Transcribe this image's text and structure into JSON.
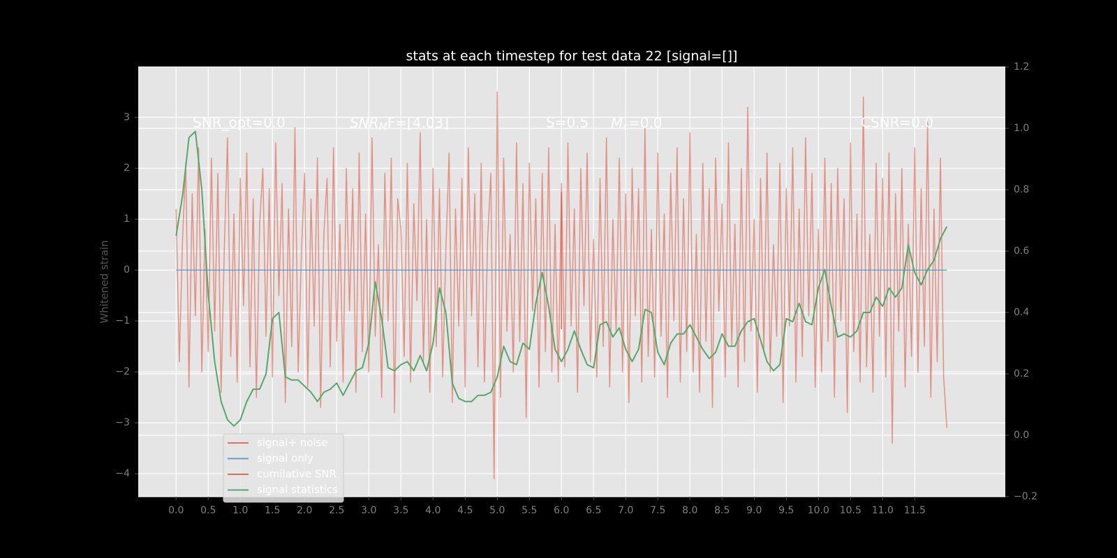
{
  "chart_data": {
    "type": "line",
    "title": "stats at each timestep for test data 22 [signal=[]]",
    "ylabel": "Whitened strain",
    "xlim": [
      -0.59,
      12.91
    ],
    "ylim": [
      -4.45,
      3.99
    ],
    "y2lim": [
      -0.2,
      1.2
    ],
    "xticks": [
      {
        "value": 0,
        "label": "0.0"
      },
      0.5,
      {
        "value": 1,
        "label": "1.0"
      },
      1.5,
      {
        "value": 2,
        "label": "2.0"
      },
      2.5,
      {
        "value": 3,
        "label": "3.0"
      },
      3.5,
      {
        "value": 4,
        "label": "4.0"
      },
      4.5,
      {
        "value": 5,
        "label": "5.0"
      },
      5.5,
      {
        "value": 6,
        "label": "6.0"
      },
      6.5,
      {
        "value": 7,
        "label": "7.0"
      },
      7.5,
      {
        "value": 8,
        "label": "8.0"
      },
      8.5,
      {
        "value": 9,
        "label": "9.0"
      },
      9.5,
      {
        "value": 10,
        "label": "10.0"
      },
      10.5,
      {
        "value": 11,
        "label": "11.0"
      },
      11.5
    ],
    "yticks": [
      {
        "value": -4,
        "label": "−4"
      },
      {
        "value": -3,
        "label": "−3"
      },
      {
        "value": -2,
        "label": "−2"
      },
      {
        "value": -1,
        "label": "−1"
      },
      0,
      1,
      2,
      3
    ],
    "y2ticks": [
      {
        "value": -0.2,
        "label": "−0.2"
      },
      {
        "value": 0,
        "label": "0.0"
      },
      0.2,
      0.4,
      0.6,
      0.8,
      {
        "value": 1,
        "label": "1.0"
      },
      1.2
    ],
    "grid": true,
    "legend": "lower left",
    "annotations": [
      {
        "text": "SNR_opt=0.0"
      },
      {
        "base": "SNR",
        "sub": "M",
        "rest": "F=[4.03]"
      },
      {
        "text": "S=0.5"
      },
      {
        "base": "M",
        "sub": "c",
        "rest": "=0.0"
      },
      {
        "text": "CSNR=0.0"
      }
    ],
    "series": [
      {
        "name": "signal+ noise",
        "color": "#e24a33",
        "alpha": 0.55,
        "axis": "y",
        "x": [
          0,
          0.05,
          0.1,
          0.15,
          0.2,
          0.25,
          0.3,
          0.35,
          0.4,
          0.45,
          0.5,
          0.55,
          0.6,
          0.65,
          0.7,
          0.75,
          0.8,
          0.85,
          0.9,
          0.95,
          1,
          1.05,
          1.1,
          1.15,
          1.2,
          1.25,
          1.3,
          1.35,
          1.4,
          1.45,
          1.5,
          1.55,
          1.6,
          1.65,
          1.7,
          1.75,
          1.8,
          1.85,
          1.9,
          1.95,
          2,
          2.05,
          2.1,
          2.15,
          2.2,
          2.25,
          2.3,
          2.35,
          2.4,
          2.45,
          2.5,
          2.55,
          2.6,
          2.65,
          2.7,
          2.75,
          2.8,
          2.85,
          2.9,
          2.95,
          3,
          3.05,
          3.1,
          3.15,
          3.2,
          3.25,
          3.3,
          3.35,
          3.4,
          3.45,
          3.5,
          3.55,
          3.6,
          3.65,
          3.7,
          3.75,
          3.8,
          3.85,
          3.9,
          3.95,
          4,
          4.05,
          4.1,
          4.15,
          4.2,
          4.25,
          4.3,
          4.35,
          4.4,
          4.45,
          4.5,
          4.55,
          4.6,
          4.65,
          4.7,
          4.75,
          4.8,
          4.85,
          4.9,
          4.95,
          5,
          5.05,
          5.1,
          5.15,
          5.2,
          5.25,
          5.3,
          5.35,
          5.4,
          5.45,
          5.5,
          5.55,
          5.6,
          5.65,
          5.7,
          5.75,
          5.8,
          5.85,
          5.9,
          5.95,
          6,
          6.05,
          6.1,
          6.15,
          6.2,
          6.25,
          6.3,
          6.35,
          6.4,
          6.45,
          6.5,
          6.55,
          6.6,
          6.65,
          6.7,
          6.75,
          6.8,
          6.85,
          6.9,
          6.95,
          7,
          7.05,
          7.1,
          7.15,
          7.2,
          7.25,
          7.3,
          7.35,
          7.4,
          7.45,
          7.5,
          7.55,
          7.6,
          7.65,
          7.7,
          7.75,
          7.8,
          7.85,
          7.9,
          7.95,
          8,
          8.05,
          8.1,
          8.15,
          8.2,
          8.25,
          8.3,
          8.35,
          8.4,
          8.45,
          8.5,
          8.55,
          8.6,
          8.65,
          8.7,
          8.75,
          8.8,
          8.85,
          8.9,
          8.95,
          9,
          9.05,
          9.1,
          9.15,
          9.2,
          9.25,
          9.3,
          9.35,
          9.4,
          9.45,
          9.5,
          9.55,
          9.6,
          9.65,
          9.7,
          9.75,
          9.8,
          9.85,
          9.9,
          9.95,
          10,
          10.05,
          10.1,
          10.15,
          10.2,
          10.25,
          10.3,
          10.35,
          10.4,
          10.45,
          10.5,
          10.55,
          10.6,
          10.65,
          10.7,
          10.75,
          10.8,
          10.85,
          10.9,
          10.95,
          11,
          11.05,
          11.1,
          11.15,
          11.2,
          11.25,
          11.3,
          11.35,
          11.4,
          11.45,
          11.5,
          11.55,
          11.6,
          11.65,
          11.7,
          11.75,
          11.8,
          11.85,
          11.9,
          11.95,
          12
        ],
        "values": [
          1.2,
          -1.8,
          0.6,
          2.1,
          -2.3,
          1.5,
          -0.9,
          2.4,
          -2.0,
          0.8,
          -1.6,
          2.2,
          -1.2,
          1.9,
          -2.4,
          0.4,
          2.6,
          -1.7,
          1.1,
          -2.2,
          1.8,
          -0.7,
          2.3,
          -1.9,
          1.4,
          -2.5,
          0.9,
          2.0,
          -1.3,
          1.6,
          -2.1,
          2.5,
          -0.5,
          1.7,
          -2.6,
          1.2,
          -1.5,
          2.8,
          -2.0,
          0.3,
          1.9,
          -2.3,
          1.4,
          -1.1,
          2.2,
          -2.7,
          0.7,
          1.8,
          -1.9,
          2.4,
          -1.4,
          0.9,
          -2.2,
          2.0,
          -0.8,
          1.6,
          -2.4,
          2.3,
          -1.6,
          1.1,
          -2.0,
          2.6,
          -1.3,
          0.5,
          -2.5,
          1.9,
          -1.0,
          2.2,
          -2.8,
          1.4,
          0.8,
          -1.7,
          2.1,
          -2.2,
          1.3,
          -0.6,
          2.7,
          -1.8,
          1.0,
          -2.4,
          2.0,
          -1.5,
          1.6,
          -2.1,
          0.4,
          2.3,
          -2.6,
          1.2,
          -1.1,
          1.8,
          -2.3,
          2.4,
          -0.9,
          1.5,
          -1.9,
          2.1,
          -2.2,
          0.6,
          1.9,
          -4.1,
          3.5,
          -2.5,
          2.2,
          -1.2,
          0.7,
          -2.0,
          2.5,
          -1.4,
          1.7,
          -2.9,
          2.1,
          -0.8,
          1.4,
          -2.3,
          1.9,
          -1.6,
          2.4,
          -2.0,
          0.9,
          -2.2,
          1.7,
          -1.9,
          2.5,
          -1.1,
          1.2,
          -2.4,
          2.0,
          -0.7,
          2.3,
          -1.8,
          0.6,
          -2.1,
          1.8,
          -1.5,
          2.6,
          -2.3,
          1.0,
          -1.2,
          2.2,
          -2.0,
          1.5,
          -2.6,
          2.0,
          -0.9,
          1.6,
          -2.2,
          2.8,
          -1.7,
          0.8,
          -2.1,
          2.3,
          -1.3,
          1.1,
          -2.5,
          1.9,
          -1.0,
          2.4,
          -2.2,
          1.4,
          -1.6,
          2.7,
          -2.0,
          0.7,
          -2.4,
          2.1,
          -1.4,
          1.6,
          -2.7,
          2.2,
          -0.8,
          1.3,
          -2.1,
          2.5,
          -1.5,
          0.9,
          -2.3,
          2.0,
          -1.8,
          3.2,
          -1.2,
          1.0,
          -2.4,
          1.8,
          -1.6,
          2.3,
          -2.0,
          0.5,
          -1.3,
          2.1,
          -2.6,
          1.6,
          -1.1,
          2.4,
          -2.2,
          1.2,
          -1.7,
          2.6,
          -0.9,
          1.9,
          -2.3,
          0.8,
          -2.0,
          2.2,
          -1.4,
          1.7,
          -2.5,
          2.0,
          -1.0,
          1.4,
          -2.8,
          2.5,
          -1.6,
          1.1,
          -2.2,
          3.4,
          -1.9,
          0.7,
          -2.4,
          2.1,
          -1.3,
          1.8,
          -2.1,
          2.3,
          -3.4,
          1.5,
          -1.2,
          2.0,
          -2.3,
          0.9,
          -1.7,
          2.4,
          -2.0,
          1.6,
          -1.5,
          2.9,
          -2.5,
          1.2,
          -1.8,
          2.2,
          -2.1,
          -3.1
        ]
      },
      {
        "name": "signal only",
        "color": "#348abd",
        "alpha": 0.7,
        "axis": "y",
        "x": [
          0,
          12
        ],
        "values": [
          0,
          0
        ]
      },
      {
        "name": "cumilative SNR",
        "color": "#e24a33",
        "alpha": 0.8,
        "axis": "y",
        "x": [
          6,
          6
        ],
        "values": [
          1.53,
          -1.16
        ]
      },
      {
        "name": "signal statistics",
        "color": "#55a868",
        "alpha": 1,
        "axis": "y2",
        "x": [
          0,
          0.1,
          0.2,
          0.3,
          0.4,
          0.5,
          0.6,
          0.7,
          0.8,
          0.9,
          1,
          1.1,
          1.2,
          1.3,
          1.4,
          1.5,
          1.6,
          1.7,
          1.8,
          1.9,
          2,
          2.1,
          2.2,
          2.3,
          2.4,
          2.5,
          2.6,
          2.7,
          2.8,
          2.9,
          3,
          3.1,
          3.2,
          3.3,
          3.4,
          3.5,
          3.6,
          3.7,
          3.8,
          3.9,
          4,
          4.1,
          4.2,
          4.3,
          4.4,
          4.5,
          4.6,
          4.7,
          4.8,
          4.9,
          5,
          5.1,
          5.2,
          5.3,
          5.4,
          5.5,
          5.6,
          5.7,
          5.8,
          5.9,
          6,
          6.1,
          6.2,
          6.3,
          6.4,
          6.5,
          6.6,
          6.7,
          6.8,
          6.9,
          7,
          7.1,
          7.2,
          7.3,
          7.4,
          7.5,
          7.6,
          7.7,
          7.8,
          7.9,
          8,
          8.1,
          8.2,
          8.3,
          8.4,
          8.5,
          8.6,
          8.7,
          8.8,
          8.9,
          9,
          9.1,
          9.2,
          9.3,
          9.4,
          9.5,
          9.6,
          9.7,
          9.8,
          9.9,
          10,
          10.1,
          10.2,
          10.3,
          10.4,
          10.5,
          10.6,
          10.7,
          10.8,
          10.9,
          11,
          11.1,
          11.2,
          11.3,
          11.4,
          11.5,
          11.6,
          11.7,
          11.8,
          11.9,
          12
        ],
        "values": [
          0.65,
          0.78,
          0.97,
          0.99,
          0.8,
          0.46,
          0.24,
          0.11,
          0.05,
          0.03,
          0.05,
          0.11,
          0.15,
          0.15,
          0.2,
          0.38,
          0.4,
          0.19,
          0.18,
          0.18,
          0.16,
          0.14,
          0.11,
          0.14,
          0.15,
          0.17,
          0.13,
          0.17,
          0.21,
          0.22,
          0.3,
          0.5,
          0.38,
          0.22,
          0.21,
          0.23,
          0.24,
          0.21,
          0.26,
          0.21,
          0.3,
          0.48,
          0.4,
          0.17,
          0.12,
          0.11,
          0.11,
          0.13,
          0.13,
          0.14,
          0.19,
          0.29,
          0.24,
          0.23,
          0.3,
          0.28,
          0.43,
          0.53,
          0.42,
          0.28,
          0.24,
          0.28,
          0.34,
          0.28,
          0.23,
          0.22,
          0.36,
          0.37,
          0.32,
          0.35,
          0.28,
          0.24,
          0.28,
          0.41,
          0.4,
          0.27,
          0.23,
          0.3,
          0.33,
          0.33,
          0.36,
          0.32,
          0.28,
          0.25,
          0.27,
          0.33,
          0.29,
          0.29,
          0.34,
          0.37,
          0.38,
          0.31,
          0.24,
          0.21,
          0.23,
          0.38,
          0.37,
          0.43,
          0.37,
          0.36,
          0.48,
          0.54,
          0.42,
          0.32,
          0.33,
          0.32,
          0.34,
          0.4,
          0.4,
          0.45,
          0.42,
          0.48,
          0.45,
          0.48,
          0.62,
          0.53,
          0.49,
          0.54,
          0.57,
          0.64,
          0.68
        ]
      }
    ]
  }
}
